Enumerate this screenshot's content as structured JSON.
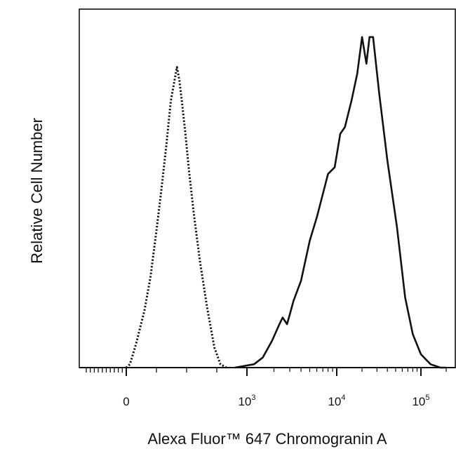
{
  "chart_data": {
    "type": "line",
    "title": "",
    "xlabel": "Alexa Fluor™ 647 Chromogranin A",
    "ylabel": "Relative Cell Number",
    "x_scale": "biexponential",
    "xlim": [
      -300,
      200000
    ],
    "ylim": [
      0,
      100
    ],
    "grid": false,
    "legend": "none",
    "x_ticks": [
      {
        "base": "0",
        "exp": "",
        "value": 0
      },
      {
        "base": "10",
        "exp": "3",
        "value": 1000
      },
      {
        "base": "10",
        "exp": "4",
        "value": 10000
      },
      {
        "base": "10",
        "exp": "5",
        "value": 100000
      }
    ],
    "series": [
      {
        "style": "dotted",
        "color": "#111111",
        "points": [
          [
            -3,
            0
          ],
          [
            0,
            0
          ],
          [
            30,
            1
          ],
          [
            80,
            7
          ],
          [
            150,
            17
          ],
          [
            200,
            27
          ],
          [
            250,
            41
          ],
          [
            290,
            53
          ],
          [
            330,
            66
          ],
          [
            370,
            80
          ],
          [
            395,
            85
          ],
          [
            420,
            90
          ],
          [
            440,
            86
          ],
          [
            460,
            80
          ],
          [
            490,
            70
          ],
          [
            520,
            59
          ],
          [
            560,
            46
          ],
          [
            610,
            32
          ],
          [
            670,
            18
          ],
          [
            730,
            6
          ],
          [
            780,
            1
          ],
          [
            830,
            0
          ]
        ]
      },
      {
        "style": "solid",
        "color": "#111111",
        "points": [
          [
            900,
            0
          ],
          [
            1200,
            1
          ],
          [
            1500,
            3
          ],
          [
            1900,
            8
          ],
          [
            2300,
            13
          ],
          [
            2500,
            15
          ],
          [
            2800,
            13
          ],
          [
            3300,
            20
          ],
          [
            4000,
            26
          ],
          [
            5000,
            38
          ],
          [
            6000,
            45
          ],
          [
            8000,
            58
          ],
          [
            9500,
            60
          ],
          [
            11000,
            70
          ],
          [
            12500,
            72
          ],
          [
            15000,
            80
          ],
          [
            17500,
            88
          ],
          [
            20000,
            99
          ],
          [
            22500,
            91
          ],
          [
            24500,
            99
          ],
          [
            27000,
            99
          ],
          [
            32000,
            82
          ],
          [
            40000,
            62
          ],
          [
            52000,
            42
          ],
          [
            65000,
            21
          ],
          [
            80000,
            10
          ],
          [
            100000,
            4
          ],
          [
            130000,
            1
          ],
          [
            170000,
            0
          ],
          [
            200000,
            0
          ]
        ]
      }
    ]
  }
}
